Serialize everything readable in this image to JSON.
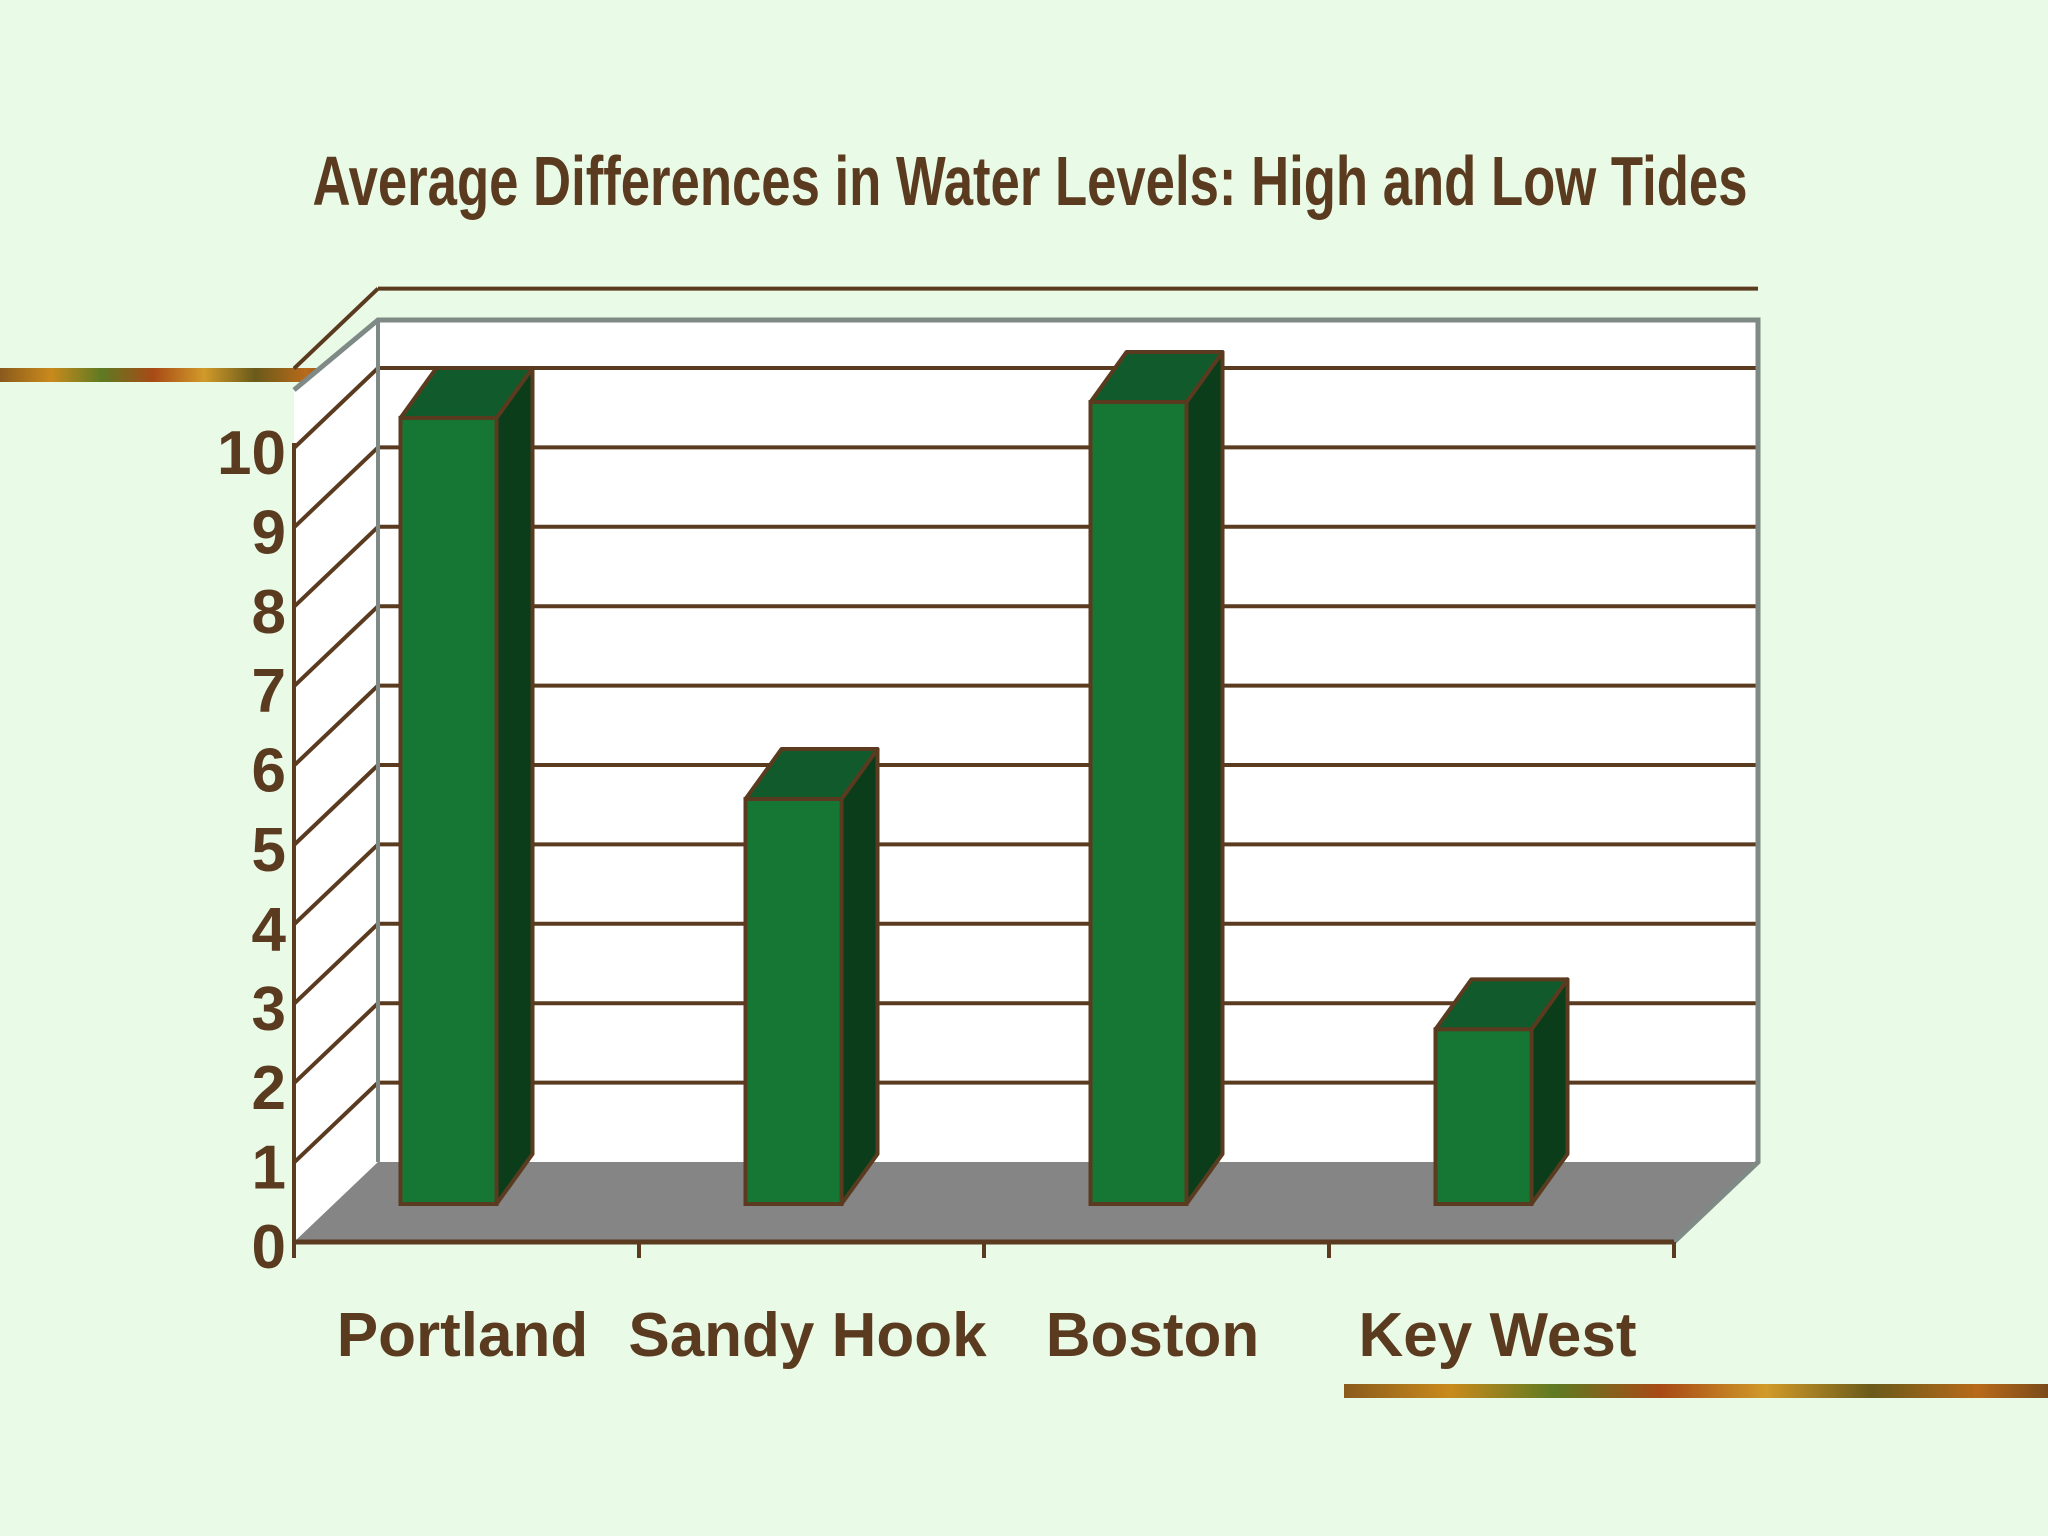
{
  "chart_data": {
    "type": "bar",
    "style": "3d-column",
    "title": "Average Differences in Water Levels: High and Low Tides",
    "categories": [
      "Portland",
      "Sandy Hook",
      "Boston",
      "Key West"
    ],
    "values": [
      9.9,
      5.1,
      10.1,
      2.2
    ],
    "ylim": [
      0,
      10
    ],
    "yticks": [
      "0",
      "1",
      "2",
      "3",
      "4",
      "5",
      "6",
      "7",
      "8",
      "9",
      "10"
    ],
    "xlabel": "",
    "ylabel": "",
    "grid": true,
    "legend": "none"
  },
  "colors": {
    "background": "#e9fae6",
    "text": "#5a3b1f",
    "bar_front": "#167735",
    "bar_top": "#105a2c",
    "bar_side": "#0b3d1b",
    "bar_outline": "#5a3b1f",
    "back_wall": "#ffffff",
    "floor": "#858585",
    "grid": "#5a3b1f",
    "frame": "#7f8a86",
    "accent_stripe": [
      "#7a4a1a",
      "#c98a1c",
      "#5e7a22",
      "#9a3a14"
    ]
  }
}
